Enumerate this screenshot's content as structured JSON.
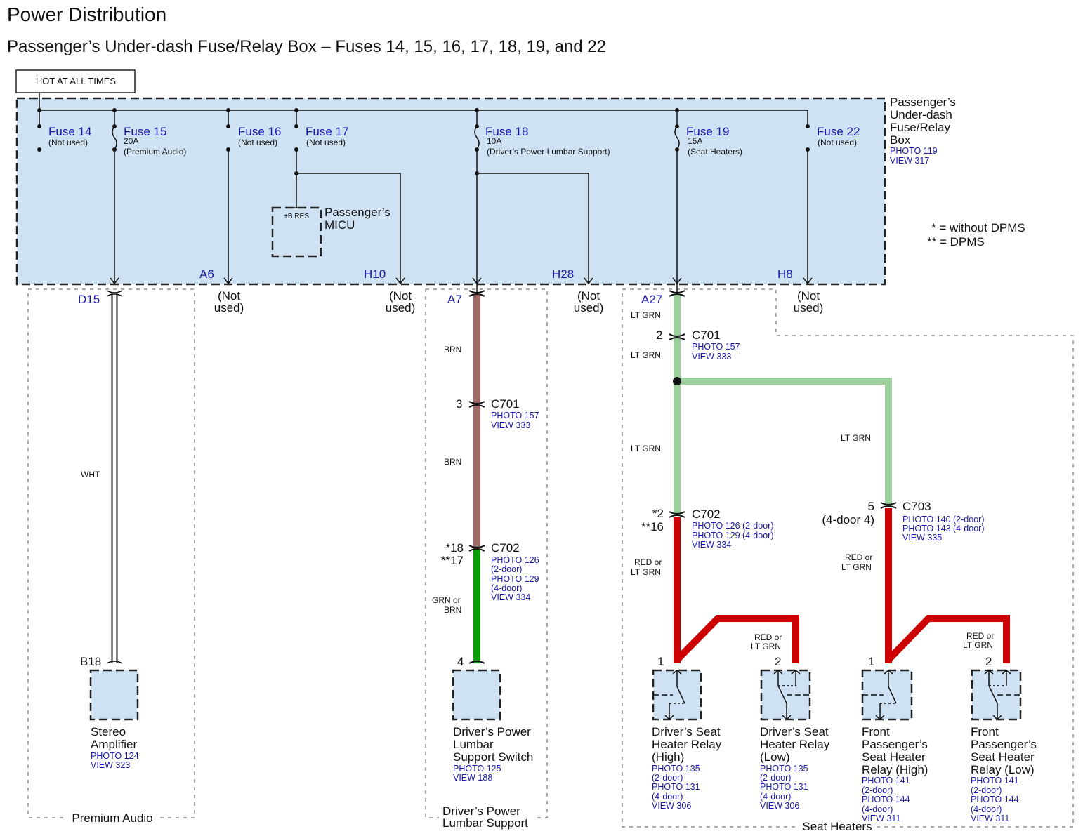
{
  "header": {
    "title": "Power Distribution",
    "subtitle": "Passenger’s Under-dash Fuse/Relay Box – Fuses 14, 15, 16, 17, 18, 19, and 22"
  },
  "hot_label": "HOT AT ALL TIMES",
  "fuse_box": {
    "fill_color": "#cfe2f3",
    "name_lines": [
      "Passenger’s",
      "Under-dash",
      "Fuse/Relay",
      "Box"
    ],
    "photo": "PHOTO 119",
    "view": "VIEW 317"
  },
  "fuses": [
    {
      "name": "Fuse 14",
      "rating": "",
      "note": "(Not used)"
    },
    {
      "name": "Fuse 15",
      "rating": "20A",
      "note": "(Premium Audio)"
    },
    {
      "name": "Fuse 16",
      "rating": "",
      "note": "(Not used)"
    },
    {
      "name": "Fuse 17",
      "rating": "",
      "note": "(Not used)"
    },
    {
      "name": "Fuse 18",
      "rating": "10A",
      "note": "(Driver’s Power Lumbar Support)"
    },
    {
      "name": "Fuse 19",
      "rating": "15A",
      "note": "(Seat Heaters)"
    },
    {
      "name": "Fuse 22",
      "rating": "",
      "note": "(Not used)"
    }
  ],
  "micu": {
    "terminal": "+B RES",
    "name_lines": [
      "Passenger’s",
      "MICU"
    ]
  },
  "legend": {
    "single": "* = without DPMS",
    "double": "** = DPMS"
  },
  "terminals": {
    "A6": "A6",
    "H10": "H10",
    "H28": "H28",
    "H8": "H8",
    "D15": "D15",
    "A7": "A7",
    "A27": "A27"
  },
  "not_used": [
    "(Not",
    "used)"
  ],
  "wire_colors": {
    "WHT": "#ffffff",
    "BRN": "#a06a6a",
    "GRN": "#0a9a0a",
    "LT_GRN": "#9ccf9c",
    "RED": "#cc0000"
  },
  "premium_audio": {
    "group_label": "Premium Audio",
    "wire": "WHT",
    "pin": "B18",
    "component_lines": [
      "Stereo",
      "Amplifier"
    ],
    "refs": [
      "PHOTO 124",
      "VIEW 323"
    ]
  },
  "lumbar": {
    "group_label_lines": [
      "Driver’s Power",
      "Lumbar Support"
    ],
    "wire1": "BRN",
    "wire2": "BRN",
    "wire3_lines": [
      "GRN or",
      "BRN"
    ],
    "c701": {
      "pin": "3",
      "name": "C701",
      "refs": [
        "PHOTO 157",
        "VIEW 333"
      ]
    },
    "c702": {
      "pins": [
        "*18",
        "**17"
      ],
      "name": "C702",
      "refs": [
        "PHOTO 126",
        "(2-door)",
        "PHOTO 129",
        "(4-door)",
        "VIEW 334"
      ]
    },
    "pin": "4",
    "component_lines": [
      "Driver’s Power",
      "Lumbar",
      "Support Switch"
    ],
    "refs": [
      "PHOTO 125",
      "VIEW 188"
    ]
  },
  "seat_heaters": {
    "group_label": "Seat Heaters",
    "wires": {
      "lt_grn": "LT GRN",
      "red_lines": [
        "RED or",
        "LT GRN"
      ]
    },
    "c701": {
      "pin": "2",
      "name": "C701",
      "refs": [
        "PHOTO 157",
        "VIEW 333"
      ]
    },
    "c702": {
      "pins": [
        "*2",
        "**16"
      ],
      "name": "C702",
      "refs": [
        "PHOTO 126 (2-door)",
        "PHOTO 129 (4-door)",
        "VIEW 334"
      ]
    },
    "c703": {
      "pins": [
        "5",
        "(4-door 4)"
      ],
      "name": "C703",
      "refs": [
        "PHOTO 140 (2-door)",
        "PHOTO 143 (4-door)",
        "VIEW 335"
      ]
    },
    "relays": [
      {
        "pin": "1",
        "name_lines": [
          "Driver’s Seat",
          "Heater Relay",
          "(High)"
        ],
        "refs": [
          "PHOTO 135",
          "(2-door)",
          "PHOTO 131",
          "(4-door)",
          "VIEW 306"
        ]
      },
      {
        "pin": "2",
        "name_lines": [
          "Driver’s Seat",
          "Heater Relay",
          "(Low)"
        ],
        "refs": [
          "PHOTO 135",
          "(2-door)",
          "PHOTO 131",
          "(4-door)",
          "VIEW 306"
        ]
      },
      {
        "pin": "1",
        "name_lines": [
          "Front",
          "Passenger’s",
          "Seat Heater",
          "Relay (High)"
        ],
        "refs": [
          "PHOTO 141",
          "(2-door)",
          "PHOTO 144",
          "(4-door)",
          "VIEW 311"
        ]
      },
      {
        "pin": "2",
        "name_lines": [
          "Front",
          "Passenger’s",
          "Seat Heater",
          "Relay (Low)"
        ],
        "refs": [
          "PHOTO 141",
          "(2-door)",
          "PHOTO 144",
          "(4-door)",
          "VIEW 311"
        ]
      }
    ]
  }
}
